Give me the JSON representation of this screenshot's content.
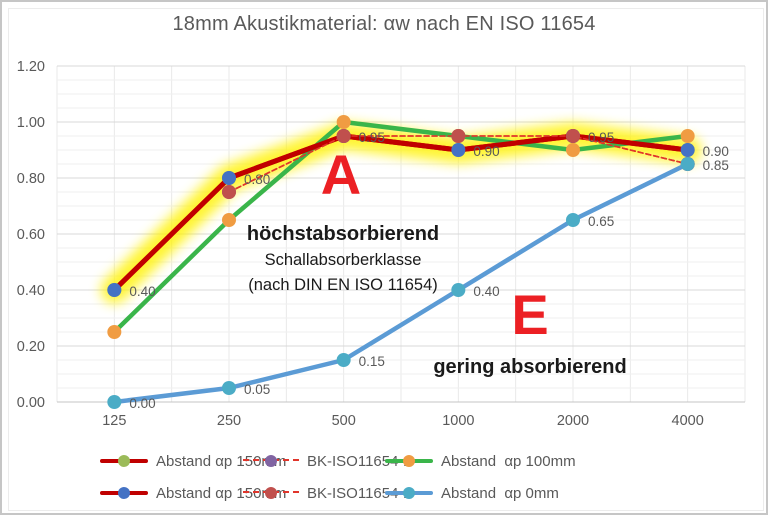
{
  "title": "18mm Akustikmaterial: αw nach EN ISO 11654",
  "chart_data": {
    "type": "line",
    "x_categories": [
      "125",
      "250",
      "500",
      "1000",
      "2000",
      "4000"
    ],
    "xlabel": "",
    "ylabel": "",
    "ylim": [
      0,
      1.2
    ],
    "y_ticks": [
      "0.00",
      "0.20",
      "0.40",
      "0.60",
      "0.80",
      "1.00",
      "1.20"
    ],
    "grid": "horizontal major every 0.20, minor every 0.05, faint vertical gridlines",
    "legend_position": "bottom, two rows",
    "highlight": {
      "color": "#FFF200",
      "values": [
        0.4,
        0.8,
        0.95,
        0.9,
        0.95,
        0.9
      ]
    },
    "series": [
      {
        "name": "Abstand αp 150mm",
        "values": [
          0.4,
          0.8,
          0.95,
          0.9,
          0.95,
          0.9
        ],
        "line_color": "#C00000",
        "marker_color": "#9BBB59",
        "width": 5,
        "dash": null,
        "show_labels": false
      },
      {
        "name": "BK-ISO11654-2",
        "values": [
          null,
          0.75,
          0.95,
          0.95,
          0.95,
          0.85
        ],
        "line_color": "#E0352B",
        "marker_color": "#8064A2",
        "width": 1.6,
        "dash": "5 3",
        "show_labels": false
      },
      {
        "name": "Abstand  αp 100mm",
        "values": [
          0.25,
          0.65,
          1.0,
          0.95,
          0.9,
          0.95
        ],
        "line_color": "#3AB54A",
        "marker_color": "#F09C42",
        "width": 4.5,
        "dash": null,
        "show_labels": false
      },
      {
        "name": "Abstand αp 150mm",
        "values": [
          0.4,
          0.8,
          0.95,
          0.9,
          0.95,
          0.9
        ],
        "line_color": "#C00000",
        "marker_color": "#4472C4",
        "width": 5,
        "dash": null,
        "show_labels": true
      },
      {
        "name": "BK-ISO11654-2",
        "values": [
          null,
          0.75,
          0.95,
          0.95,
          0.95,
          0.85
        ],
        "line_color": "#E0352B",
        "marker_color": "#C0504D",
        "width": 1.6,
        "dash": "5 3",
        "show_labels": false
      },
      {
        "name": "Abstand  αp 0mm",
        "values": [
          0.0,
          0.05,
          0.15,
          0.4,
          0.65,
          0.85
        ],
        "line_color": "#5B9BD5",
        "marker_color": "#4BACC6",
        "width": 4.5,
        "dash": null,
        "show_labels": true
      }
    ]
  },
  "annotations": {
    "class_a_letter": "A",
    "class_e_letter": "E",
    "absorber_note_line1": "höchstabsorbierend",
    "absorber_note_line2": "Schallabsorberklasse",
    "absorber_note_line3": "(nach DIN EN ISO 11654)",
    "low_absorbing_label": "gering absorbierend",
    "annotation_red": "#EC2024"
  },
  "legend": {
    "rows": [
      {
        "items": [
          {
            "label": "Abstand αp 150mm",
            "line_color": "#C00000",
            "marker_color": "#9BBB59",
            "dashed": false
          },
          {
            "label": "BK-ISO11654-2",
            "line_color": "#E0352B",
            "marker_color": "#8064A2",
            "dashed": true
          },
          {
            "label": "Abstand  αp 100mm",
            "line_color": "#3AB54A",
            "marker_color": "#F09C42",
            "dashed": false
          }
        ]
      },
      {
        "items": [
          {
            "label": "Abstand αp 150mm",
            "line_color": "#C00000",
            "marker_color": "#4472C4",
            "dashed": false
          },
          {
            "label": "BK-ISO11654-2",
            "line_color": "#E0352B",
            "marker_color": "#C0504D",
            "dashed": true
          },
          {
            "label": "Abstand  αp 0mm",
            "line_color": "#5B9BD5",
            "marker_color": "#4BACC6",
            "dashed": false
          }
        ]
      }
    ]
  }
}
